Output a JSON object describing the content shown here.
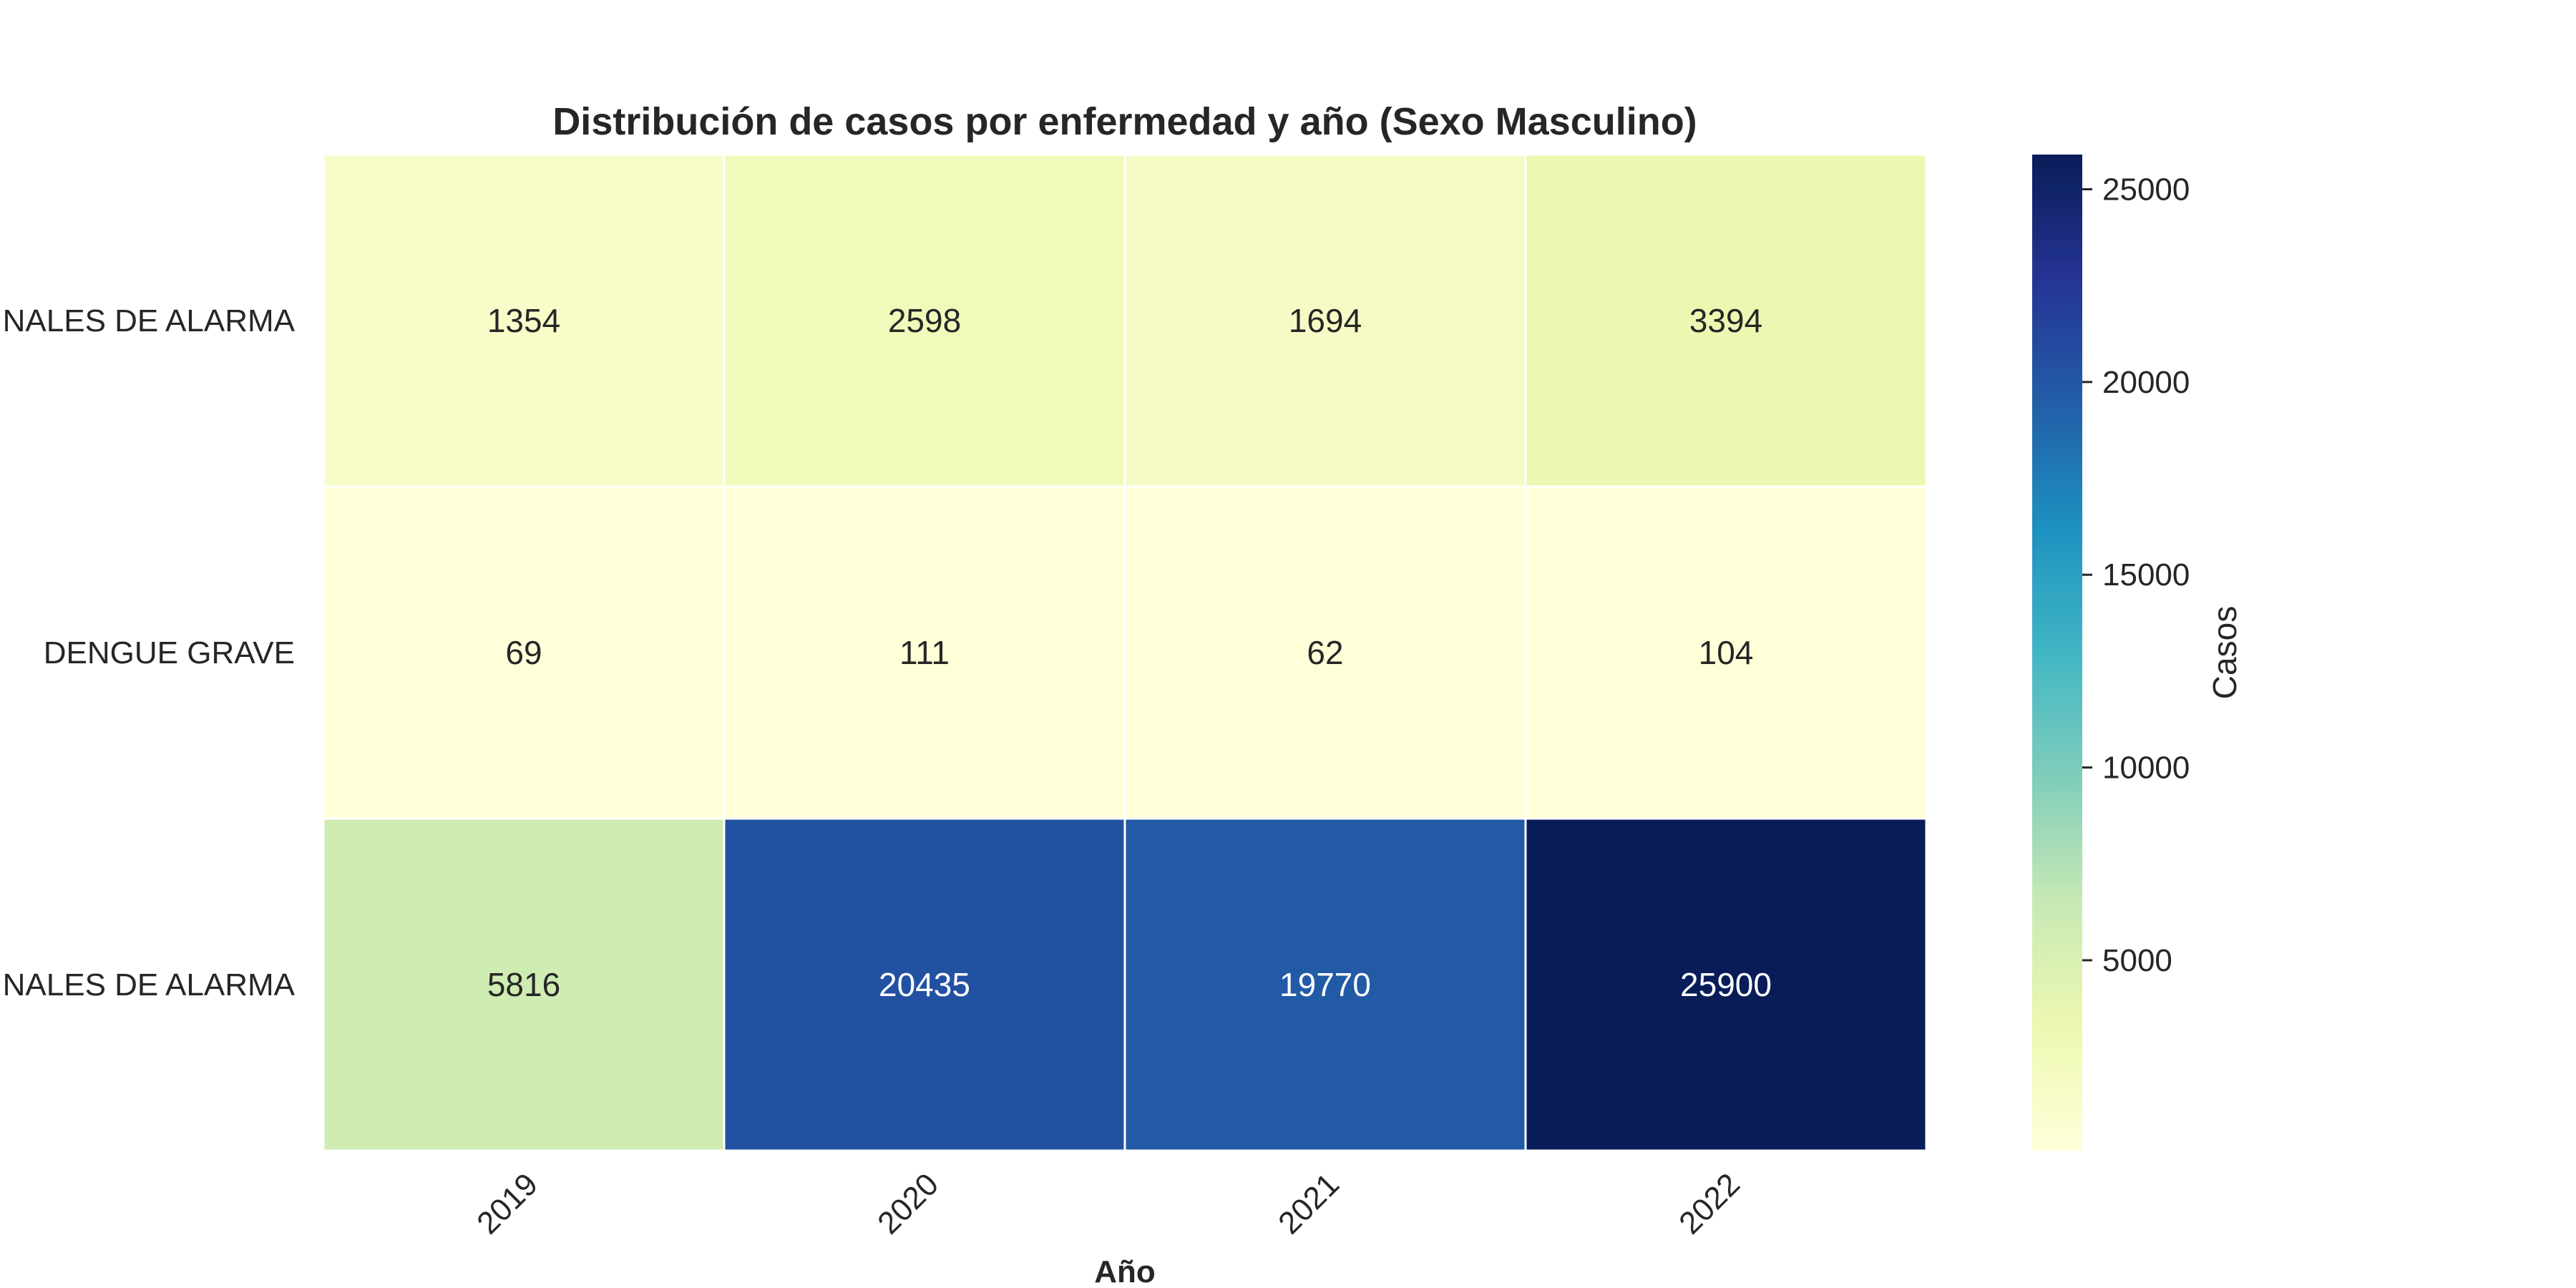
{
  "chart_data": {
    "type": "heatmap",
    "title": "Distribución de casos por enfermedad y año (Sexo Masculino)",
    "xlabel": "Año",
    "ylabel": "",
    "x": [
      "2019",
      "2020",
      "2021",
      "2022"
    ],
    "y": [
      "NALES DE ALARMA",
      "DENGUE GRAVE",
      "NALES DE ALARMA"
    ],
    "values": [
      [
        1354,
        2598,
        1694,
        3394
      ],
      [
        69,
        111,
        62,
        104
      ],
      [
        5816,
        20435,
        19770,
        25900
      ]
    ],
    "colorbar": {
      "label": "Casos",
      "ticks": [
        "5000",
        "10000",
        "15000",
        "20000",
        "25000"
      ],
      "range": [
        62,
        25900
      ],
      "colormap": "YlGnBu"
    },
    "grid": false
  }
}
